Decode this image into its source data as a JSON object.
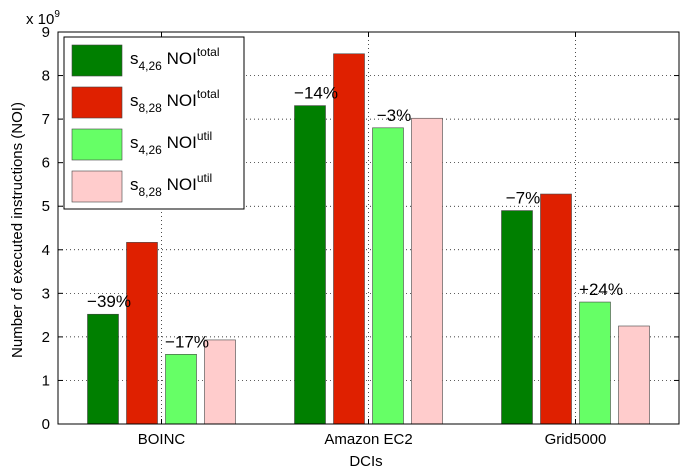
{
  "chart_data": {
    "type": "bar",
    "title": "",
    "xlabel": "DCIs",
    "ylabel": "Number of executed instructions (NOI)",
    "y_multiplier": "x 10",
    "y_multiplier_exp": "9",
    "ylim": [
      0,
      9
    ],
    "yticks": [
      "0",
      "1",
      "2",
      "3",
      "4",
      "5",
      "6",
      "7",
      "8",
      "9"
    ],
    "grid": "dotted horizontal and vertical",
    "legend_position": "top-left",
    "categories": [
      "BOINC",
      "Amazon EC2",
      "Grid5000"
    ],
    "series": [
      {
        "name": "s4,26 NOItotal",
        "base": "s",
        "sub": "4,26",
        "main": " NOI",
        "sup": "total",
        "color": "#007f00",
        "values": [
          2.52,
          7.31,
          4.9
        ]
      },
      {
        "name": "s8,28 NOItotal",
        "base": "s",
        "sub": "8,28",
        "main": " NOI",
        "sup": "total",
        "color": "#df2000",
        "values": [
          4.17,
          8.5,
          5.28
        ]
      },
      {
        "name": "s4,26 NOIutil",
        "base": "s",
        "sub": "4,26",
        "main": " NOI",
        "sup": "util",
        "color": "#66ff66",
        "values": [
          1.6,
          6.8,
          2.8
        ]
      },
      {
        "name": "s8,28 NOIutil",
        "base": "s",
        "sub": "8,28",
        "main": " NOI",
        "sup": "util",
        "color": "#ffcccc",
        "values": [
          1.93,
          7.02,
          2.25
        ]
      }
    ],
    "annotations": [
      {
        "text": "−39%",
        "category": 0,
        "series": 0
      },
      {
        "text": "−17%",
        "category": 0,
        "series": 2
      },
      {
        "text": "−14%",
        "category": 1,
        "series": 0
      },
      {
        "text": "−3%",
        "category": 1,
        "series": 2
      },
      {
        "text": "−7%",
        "category": 2,
        "series": 0
      },
      {
        "text": "+24%",
        "category": 2,
        "series": 2
      }
    ]
  }
}
